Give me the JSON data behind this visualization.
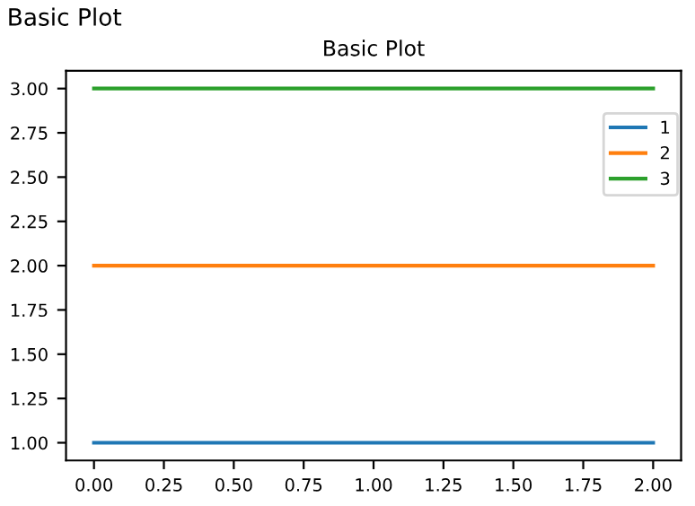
{
  "chart_data": {
    "type": "line",
    "title": "Basic Plot",
    "subtitle": "Basic Plot",
    "x": [
      0,
      2
    ],
    "series": [
      {
        "name": "1",
        "color": "#1f77b4",
        "values": [
          1,
          1
        ]
      },
      {
        "name": "2",
        "color": "#ff7f0e",
        "values": [
          2,
          2
        ]
      },
      {
        "name": "3",
        "color": "#2ca02c",
        "values": [
          3,
          3
        ]
      }
    ],
    "xlim": [
      -0.1,
      2.1
    ],
    "ylim": [
      0.9,
      3.1
    ],
    "xticks": [
      {
        "value": 0,
        "label": "0.00"
      },
      {
        "value": 0.25,
        "label": "0.25"
      },
      {
        "value": 0.5,
        "label": "0.50"
      },
      {
        "value": 0.75,
        "label": "0.75"
      },
      {
        "value": 1,
        "label": "1.00"
      },
      {
        "value": 1.25,
        "label": "1.25"
      },
      {
        "value": 1.5,
        "label": "1.50"
      },
      {
        "value": 1.75,
        "label": "1.75"
      },
      {
        "value": 2,
        "label": "2.00"
      }
    ],
    "yticks": [
      {
        "value": 1,
        "label": "1.00"
      },
      {
        "value": 1.25,
        "label": "1.25"
      },
      {
        "value": 1.5,
        "label": "1.50"
      },
      {
        "value": 1.75,
        "label": "1.75"
      },
      {
        "value": 2,
        "label": "2.00"
      },
      {
        "value": 2.25,
        "label": "2.25"
      },
      {
        "value": 2.5,
        "label": "2.50"
      },
      {
        "value": 2.75,
        "label": "2.75"
      },
      {
        "value": 3,
        "label": "3.00"
      }
    ],
    "legend": "top right",
    "grid": false,
    "marker": "none",
    "line_style": "solid"
  }
}
